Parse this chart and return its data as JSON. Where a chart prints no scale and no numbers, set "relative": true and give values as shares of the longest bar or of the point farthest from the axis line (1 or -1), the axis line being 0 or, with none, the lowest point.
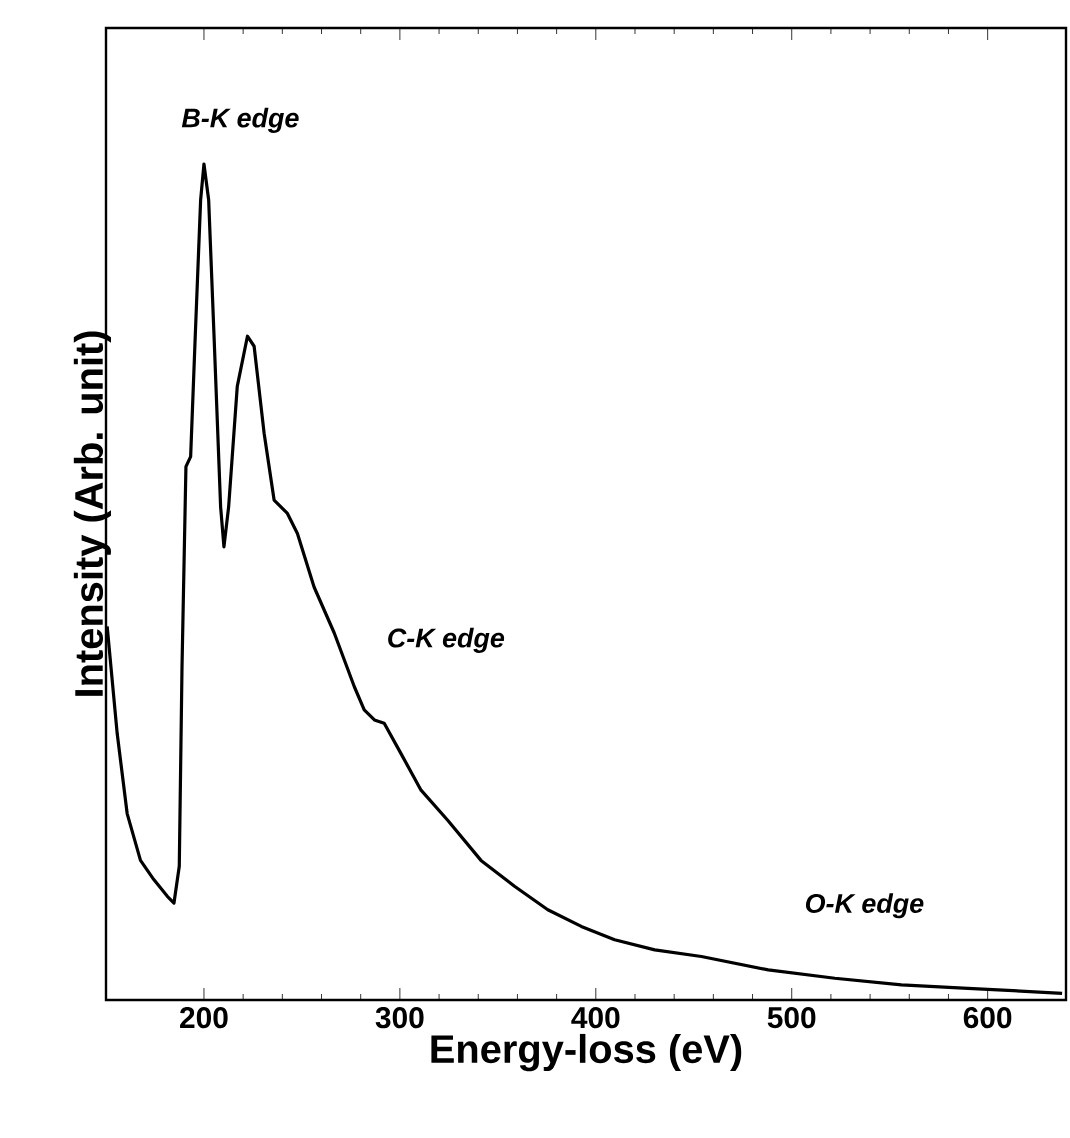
{
  "chart_data": {
    "type": "line",
    "xlabel": "Energy-loss (eV)",
    "ylabel": "Intensity (Arb. unit)",
    "relative": true,
    "xlim": [
      150,
      640
    ],
    "xticks": [
      200,
      300,
      400,
      500,
      600
    ],
    "annotations": [
      "B-K edge",
      "C-K edge",
      "O-K edge"
    ],
    "series": [
      {
        "color": "#000000",
        "x": [
          150.6,
          155.7,
          160.8,
          167.6,
          174.4,
          181.3,
          184.7,
          187.4,
          188.8,
          190.8,
          193.2,
          195.6,
          198.3,
          200,
          202.4,
          205.1,
          208.5,
          210.2,
          212.6,
          217.0,
          222.2,
          225.6,
          230.7,
          235.8,
          242.6,
          247.7,
          256.2,
          266.5,
          276.7,
          281.8,
          287.0,
          292.0,
          300.5,
          310.8,
          324.4,
          341.4,
          358.5,
          375.5,
          392.6,
          409.6,
          430.1,
          453.9,
          488,
          522,
          556,
          590,
          638
        ],
        "values": [
          0.447,
          0.319,
          0.223,
          0.167,
          0.144,
          0.124,
          0.116,
          0.16,
          0.399,
          0.638,
          0.65,
          0.797,
          0.957,
          1.0,
          0.957,
          0.797,
          0.59,
          0.542,
          0.59,
          0.734,
          0.794,
          0.782,
          0.678,
          0.598,
          0.582,
          0.558,
          0.494,
          0.439,
          0.375,
          0.347,
          0.335,
          0.331,
          0.295,
          0.251,
          0.215,
          0.167,
          0.136,
          0.108,
          0.088,
          0.072,
          0.06,
          0.052,
          0.036,
          0.026,
          0.018,
          0.014,
          0.008
        ]
      }
    ]
  }
}
